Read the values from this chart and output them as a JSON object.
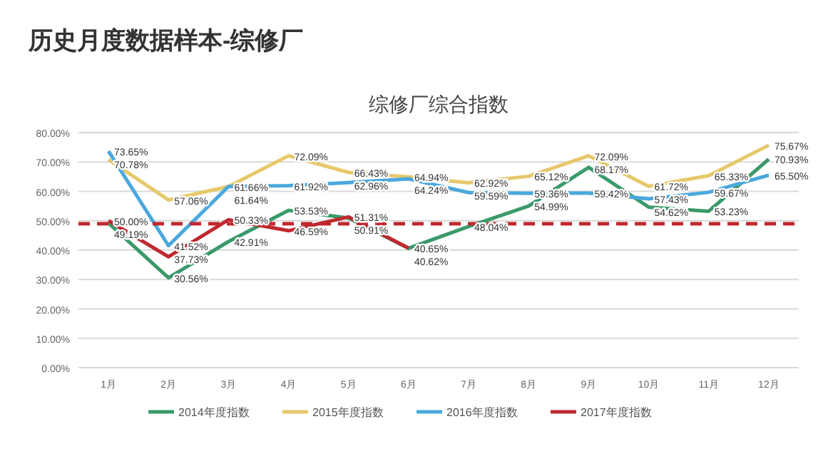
{
  "chart_data": {
    "type": "line",
    "title": "历史月度数据样本-综修厂",
    "subtitle": "综修厂综合指数",
    "categories": [
      "1月",
      "2月",
      "3月",
      "4月",
      "5月",
      "6月",
      "7月",
      "8月",
      "9月",
      "10月",
      "11月",
      "12月"
    ],
    "series": [
      {
        "name": "2014年度指数",
        "color": "#3a9a6a",
        "values": [
          49.19,
          30.56,
          42.91,
          53.53,
          50.91,
          40.62,
          48.04,
          54.99,
          68.17,
          54.62,
          53.23,
          70.93
        ],
        "value_labels": [
          "49.19%",
          "30.56%",
          "42.91%",
          "53.53%",
          "50.91%",
          "40.62%",
          "48.04%",
          "54.99%",
          "68.17%",
          "54.62%",
          "53.23%",
          "70.93%"
        ]
      },
      {
        "name": "2015年度指数",
        "color": "#e6c86a",
        "values": [
          70.78,
          57.06,
          61.64,
          72.09,
          66.43,
          64.94,
          62.92,
          65.12,
          72.09,
          61.72,
          65.33,
          75.67
        ],
        "value_labels": [
          "70.78%",
          "57.06%",
          "61.64%",
          "72.09%",
          "66.43%",
          "64.94%",
          "62.92%",
          "65.12%",
          "72.09%",
          "61.72%",
          "65.33%",
          "75.67%"
        ]
      },
      {
        "name": "2016年度指数",
        "color": "#4aa8dc",
        "values": [
          73.65,
          41.52,
          61.66,
          61.92,
          62.96,
          64.24,
          59.59,
          59.36,
          59.42,
          57.43,
          59.67,
          65.5
        ],
        "value_labels": [
          "73.65%",
          "41.52%",
          "61.66%",
          "61.92%",
          "62.96%",
          "64.24%",
          "59.59%",
          "59.36%",
          "59.42%",
          "57.43%",
          "59.67%",
          "65.50%"
        ]
      },
      {
        "name": "2017年度指数",
        "color": "#c0282e",
        "values": [
          50.0,
          37.73,
          50.33,
          46.59,
          51.31,
          40.65,
          null,
          null,
          null,
          null,
          null,
          null
        ],
        "value_labels": [
          "50.00%",
          "37.73%",
          "50.33%",
          "46.59%",
          "51.31%",
          "40.65%",
          null,
          null,
          null,
          null,
          null,
          null
        ]
      }
    ],
    "ylim": [
      0,
      80
    ],
    "yticks": [
      {
        "value": 0,
        "label": "0.00%"
      },
      {
        "value": 10,
        "label": "10.00%"
      },
      {
        "value": 20,
        "label": "20.00%"
      },
      {
        "value": 30,
        "label": "30.00%"
      },
      {
        "value": 40,
        "label": "40.00%"
      },
      {
        "value": 50,
        "label": "50.00%"
      },
      {
        "value": 60,
        "label": "60.00%"
      },
      {
        "value": 70,
        "label": "70.00%"
      },
      {
        "value": 80,
        "label": "80.00%"
      }
    ],
    "ref_lines": [
      {
        "axis": "y",
        "value": 49,
        "color": "#c0282e",
        "line_style": "dashed"
      }
    ],
    "grid": "y",
    "legend": "bottom",
    "marker": "none",
    "line_style": "solid"
  }
}
